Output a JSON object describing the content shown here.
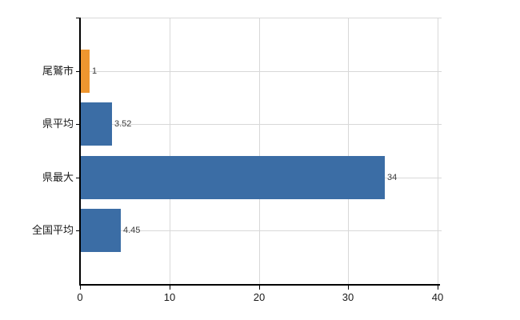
{
  "chart_data": {
    "type": "bar",
    "orientation": "horizontal",
    "title": "",
    "xlabel": "",
    "ylabel": "",
    "categories": [
      "尾鷲市",
      "県平均",
      "県最大",
      "全国平均"
    ],
    "values": [
      1,
      3.52,
      34,
      4.45
    ],
    "value_labels": [
      "1",
      "3.52",
      "34",
      "4.45"
    ],
    "bar_colors": [
      "#ee962f",
      "#3b6da5",
      "#3b6da5",
      "#3b6da5"
    ],
    "xlim": [
      0,
      40
    ],
    "x_ticks": [
      0,
      10,
      20,
      30,
      40
    ],
    "x_tick_labels": [
      "0",
      "10",
      "20",
      "30",
      "40"
    ],
    "grid": true,
    "legend": false
  },
  "colors": {
    "background": "#ffffff",
    "axis": "#000000",
    "gridline": "#d8d8d8",
    "category_label": "#1a1a1a",
    "value_label": "#3c3c3c",
    "highlight_bar": "#ee962f",
    "default_bar": "#3b6da5"
  }
}
